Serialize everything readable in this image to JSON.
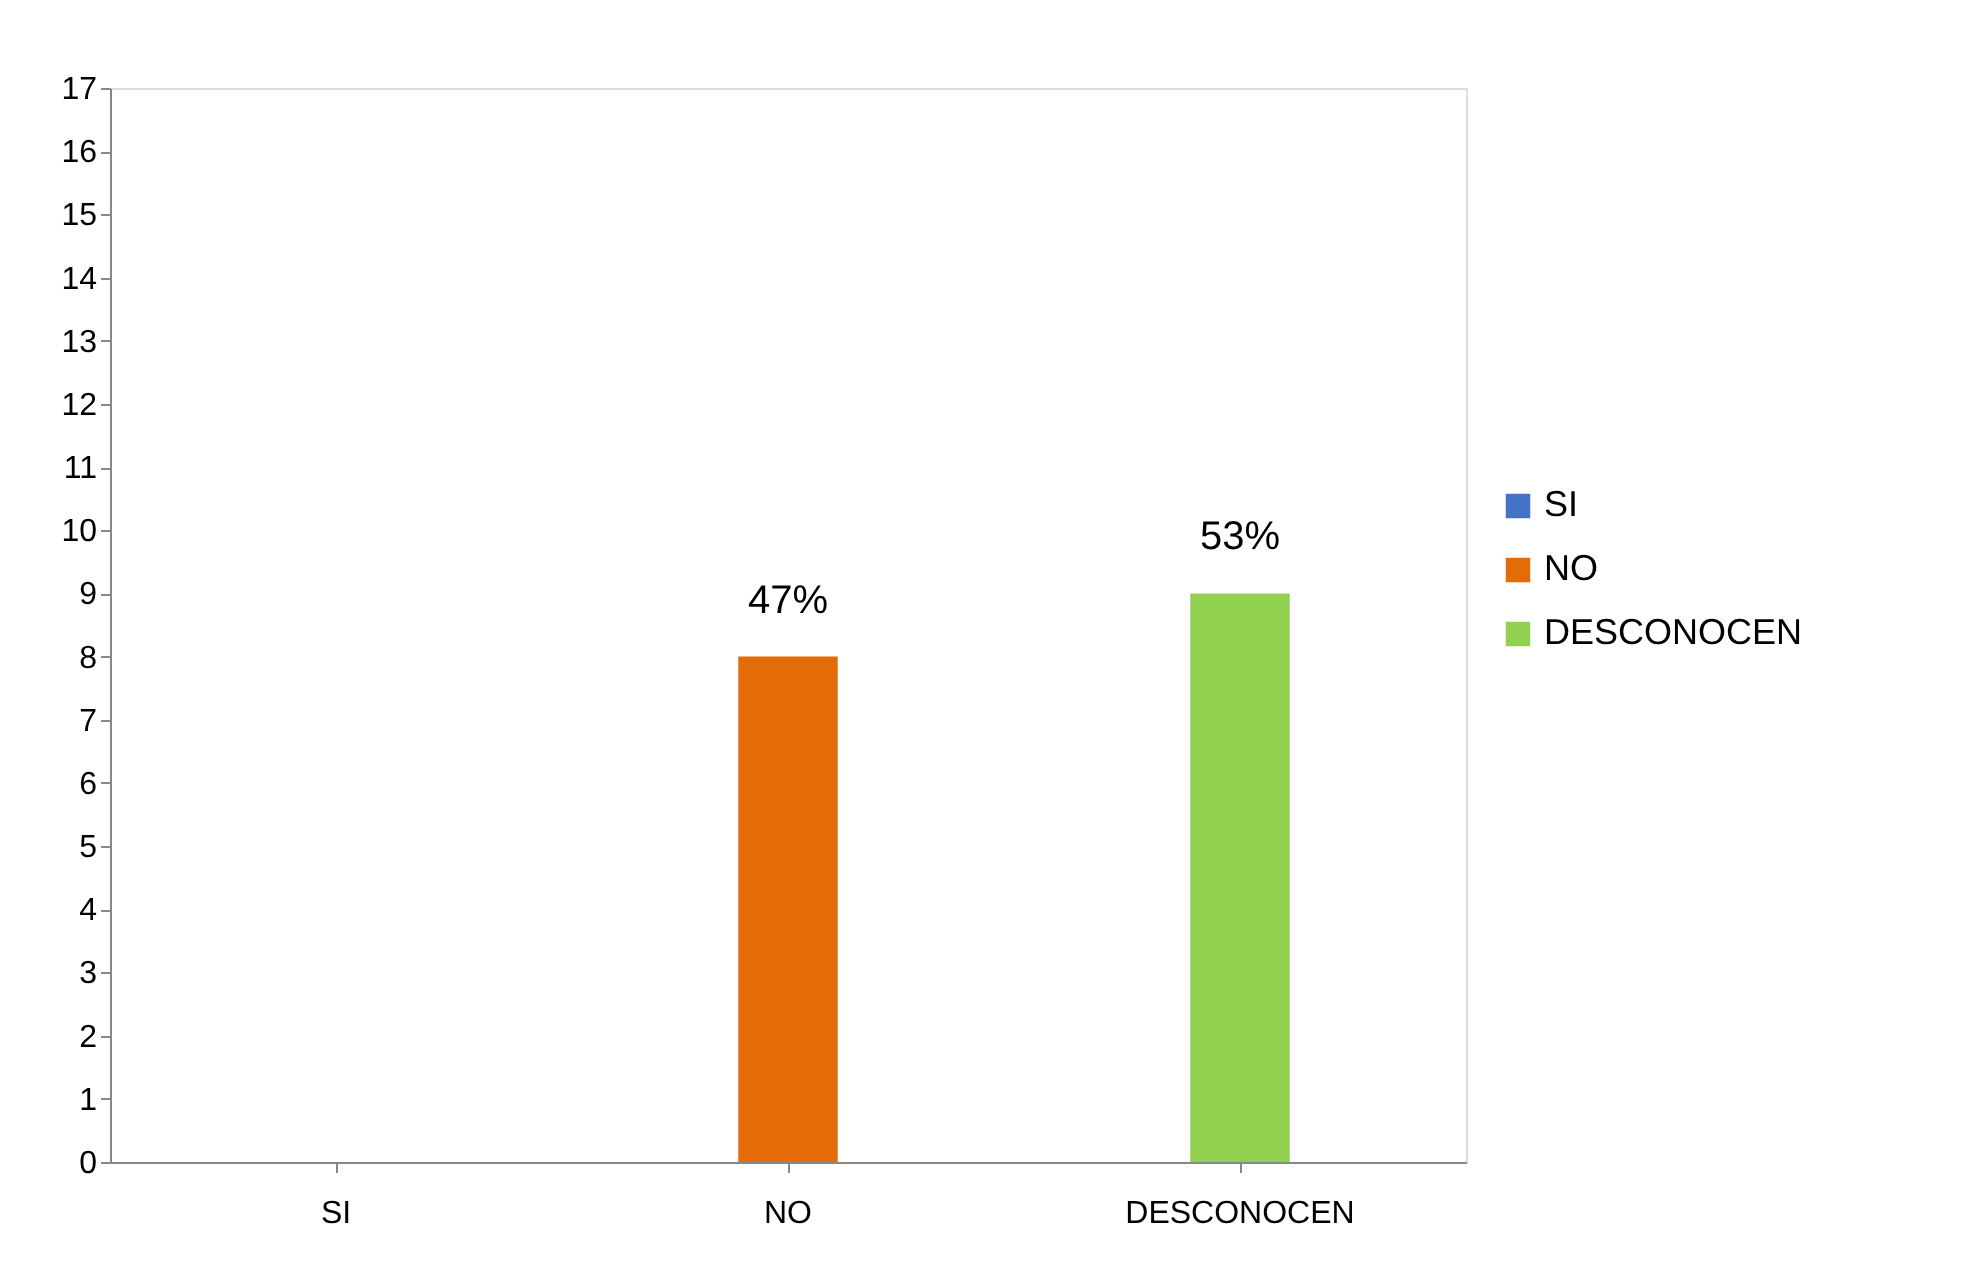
{
  "chart_data": {
    "type": "bar",
    "categories": [
      "SI",
      "NO",
      "DESCONOCEN"
    ],
    "series": [
      {
        "name": "SI",
        "color": "#4472c4",
        "values": [
          0,
          null,
          null
        ]
      },
      {
        "name": "NO",
        "color": "#e36c09",
        "values": [
          null,
          8,
          null
        ]
      },
      {
        "name": "DESCONOCEN",
        "color": "#92d050",
        "values": [
          null,
          null,
          9
        ]
      }
    ],
    "annotations": [
      {
        "text": "47%",
        "x": "NO",
        "y": 8
      },
      {
        "text": "53%",
        "x": "DESCONOCEN",
        "y": 9
      }
    ],
    "ylim": [
      0,
      17
    ],
    "yticks": [
      0,
      1,
      2,
      3,
      4,
      5,
      6,
      7,
      8,
      9,
      10,
      11,
      12,
      13,
      14,
      15,
      16,
      17
    ],
    "grid": false,
    "legend": "right"
  }
}
